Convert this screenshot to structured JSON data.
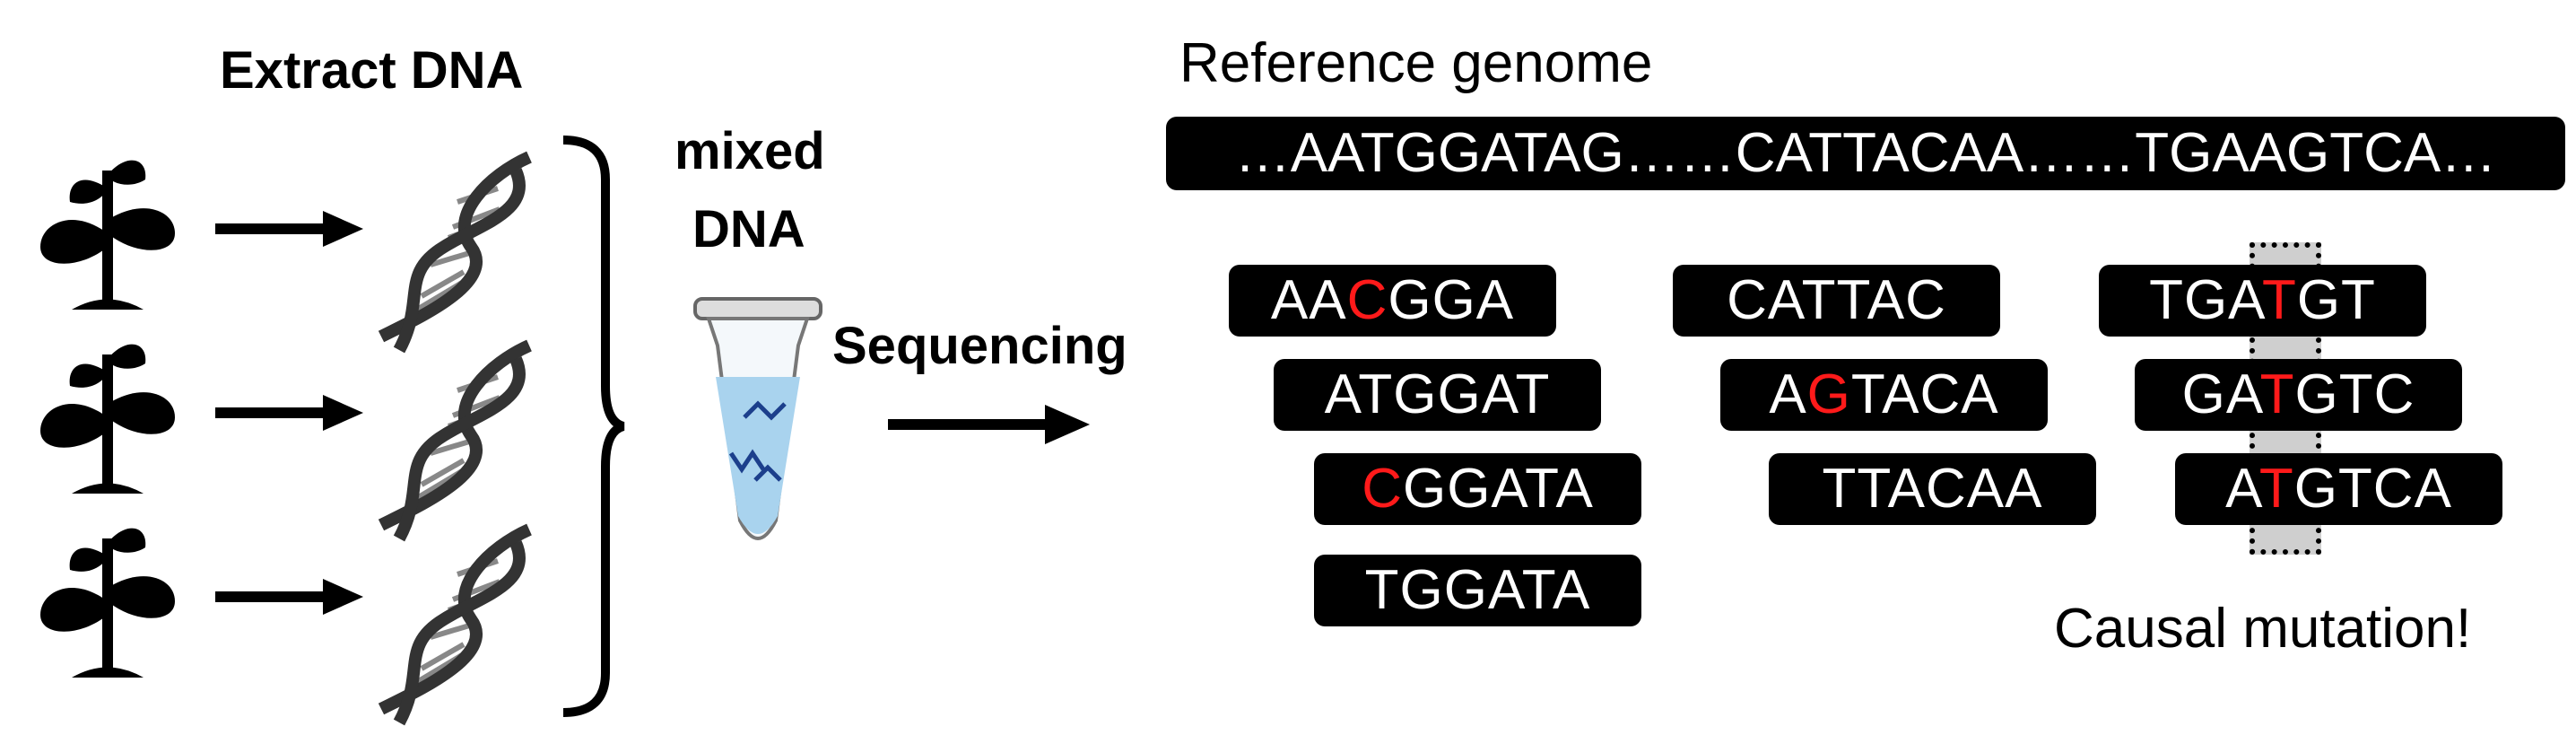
{
  "labels": {
    "extract_dna": "Extract DNA",
    "mixed_dna_line1": "mixed",
    "mixed_dna_line2": "DNA",
    "sequencing": "Sequencing",
    "reference_genome": "Reference genome",
    "causal_mutation": "Causal mutation!"
  },
  "reference_sequence": "…AATGGATAG……CATTACAA……TGAAGTCA…",
  "reads": [
    {
      "pre": "AA",
      "mut": "C",
      "post": "GGA"
    },
    {
      "pre": "ATGGAT",
      "mut": "",
      "post": ""
    },
    {
      "pre": "",
      "mut": "C",
      "post": "GGATA"
    },
    {
      "pre": "TGGATA",
      "mut": "",
      "post": ""
    },
    {
      "pre": "CATTAC",
      "mut": "",
      "post": ""
    },
    {
      "pre": "A",
      "mut": "G",
      "post": "TACA"
    },
    {
      "pre": "TTACAA",
      "mut": "",
      "post": ""
    },
    {
      "pre": "TGA",
      "mut": "T",
      "post": "GT"
    },
    {
      "pre": "GA",
      "mut": "T",
      "post": "GTC"
    },
    {
      "pre": "A",
      "mut": "T",
      "post": "GTCA"
    }
  ],
  "colors": {
    "read_bg": "#000000",
    "read_text": "#ffffff",
    "mutation": "#ff1a1a",
    "highlight": "#cfcfcf"
  },
  "icons": [
    "plant-icon",
    "dna-helix-icon",
    "tube-icon",
    "arrow-icon"
  ]
}
